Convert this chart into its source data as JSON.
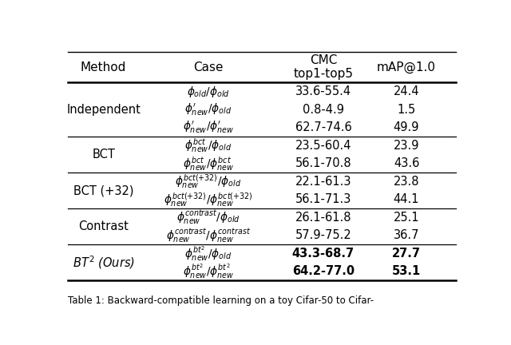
{
  "bg_color": "#ffffff",
  "caption": "Table 1: Backward-compatible learning on a toy Cifar-50 to Cifar-",
  "sections": [
    {
      "method": "Independent",
      "method_italic": false,
      "rows": [
        {
          "case": "$\\phi_{old}/\\phi_{old}$",
          "cmc": "33.6-55.4",
          "map": "24.4",
          "bold": false
        },
        {
          "case": "$\\phi^{\\prime}_{new}/\\phi_{old}$",
          "cmc": "0.8-4.9",
          "map": "1.5",
          "bold": false
        },
        {
          "case": "$\\phi^{\\prime}_{new}/\\phi^{\\prime}_{new}$",
          "cmc": "62.7-74.6",
          "map": "49.9",
          "bold": false
        }
      ]
    },
    {
      "method": "BCT",
      "method_italic": false,
      "rows": [
        {
          "case": "$\\phi^{bct}_{new}/\\phi_{old}$",
          "cmc": "23.5-60.4",
          "map": "23.9",
          "bold": false
        },
        {
          "case": "$\\phi^{bct}_{new}/\\phi^{bct}_{new}$",
          "cmc": "56.1-70.8",
          "map": "43.6",
          "bold": false
        }
      ]
    },
    {
      "method": "BCT (+32)",
      "method_italic": false,
      "rows": [
        {
          "case": "$\\phi^{bct(+32)}_{new}/\\phi_{old}$",
          "cmc": "22.1-61.3",
          "map": "23.8",
          "bold": false
        },
        {
          "case": "$\\phi^{bct(+32)}_{new}/\\phi^{bct(+32)}_{new}$",
          "cmc": "56.1-71.3",
          "map": "44.1",
          "bold": false
        }
      ]
    },
    {
      "method": "Contrast",
      "method_italic": false,
      "rows": [
        {
          "case": "$\\phi^{contrast}_{new}/\\phi_{old}$",
          "cmc": "26.1-61.8",
          "map": "25.1",
          "bold": false
        },
        {
          "case": "$\\phi^{contrast}_{new}/\\phi^{contrast}_{new}$",
          "cmc": "57.9-75.2",
          "map": "36.7",
          "bold": false
        }
      ]
    },
    {
      "method": "$BT^{2}$ (Ours)",
      "method_italic": true,
      "rows": [
        {
          "case": "$\\phi^{bt^{2}}_{new}/\\phi_{old}$",
          "cmc": "43.3-68.7",
          "map": "27.7",
          "bold": true
        },
        {
          "case": "$\\phi^{bt^{2}}_{new}/\\phi^{bt^{2}}_{new}$",
          "cmc": "64.2-77.0",
          "map": "53.1",
          "bold": true
        }
      ]
    }
  ]
}
